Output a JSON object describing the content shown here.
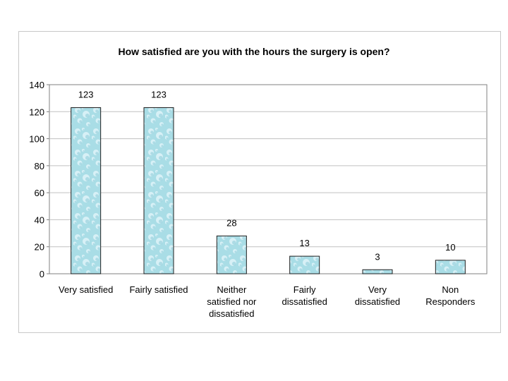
{
  "chart_data": {
    "type": "bar",
    "title": "How satisfied are you with the hours the surgery is open?",
    "categories": [
      [
        "Very satisfied"
      ],
      [
        "Fairly satisfied"
      ],
      [
        "Neither",
        "satisfied nor",
        "dissatisfied"
      ],
      [
        "Fairly",
        "dissatisfied"
      ],
      [
        "Very",
        "dissatisfied"
      ],
      [
        "Non",
        "Responders"
      ]
    ],
    "values": [
      123,
      123,
      28,
      13,
      3,
      10
    ],
    "data_labels": [
      "123",
      "123",
      "28",
      "13",
      "3",
      "10"
    ],
    "xlabel": "",
    "ylabel": "",
    "ylim": [
      0,
      140
    ],
    "yticks": [
      0,
      20,
      40,
      60,
      80,
      100,
      120,
      140
    ],
    "grid": true,
    "colors": {
      "bar_fill": "#a9dde6",
      "bar_highlight": "#e6f7fa",
      "bar_edge": "#1f1f1f",
      "grid": "#c0c0c0",
      "axis": "#808080",
      "text": "#000000"
    }
  }
}
